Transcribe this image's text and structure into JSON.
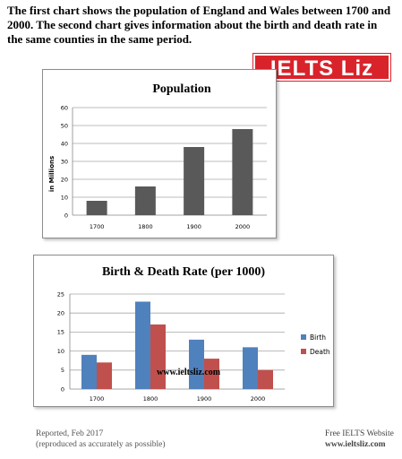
{
  "intro": {
    "text": "The first chart shows the population of England and Wales between 1700 and 2000. The second chart gives information about the birth and death rate in the same counties in the same period."
  },
  "logo": {
    "text": "IELTS Liz"
  },
  "chart_data": [
    {
      "type": "bar",
      "title": "Population",
      "ylabel": "in Millions",
      "categories": [
        "1700",
        "1800",
        "1900",
        "2000"
      ],
      "values": [
        8,
        16,
        38,
        48
      ],
      "ylim": [
        0,
        60
      ],
      "yticks": [
        0,
        10,
        20,
        30,
        40,
        50,
        60
      ],
      "grid": true,
      "color": "#595959"
    },
    {
      "type": "bar",
      "title": "Birth & Death Rate (per 1000)",
      "categories": [
        "1700",
        "1800",
        "1900",
        "2000"
      ],
      "series": [
        {
          "name": "Birth",
          "values": [
            9,
            23,
            13,
            11
          ],
          "color": "#4f81bd"
        },
        {
          "name": "Death",
          "values": [
            7,
            17,
            8,
            5
          ],
          "color": "#c0504d"
        }
      ],
      "ylim": [
        0,
        25
      ],
      "yticks": [
        0,
        5,
        10,
        15,
        20,
        25
      ],
      "grid": true,
      "legend": "right",
      "annotation": "www.ieltsliz.com"
    }
  ],
  "footer": {
    "left_line1": "Reported, Feb 2017",
    "left_line2": "(reproduced as accurately as possible)",
    "right_line1": "Free IELTS Website",
    "right_line2": "www.ieltsliz.com"
  }
}
